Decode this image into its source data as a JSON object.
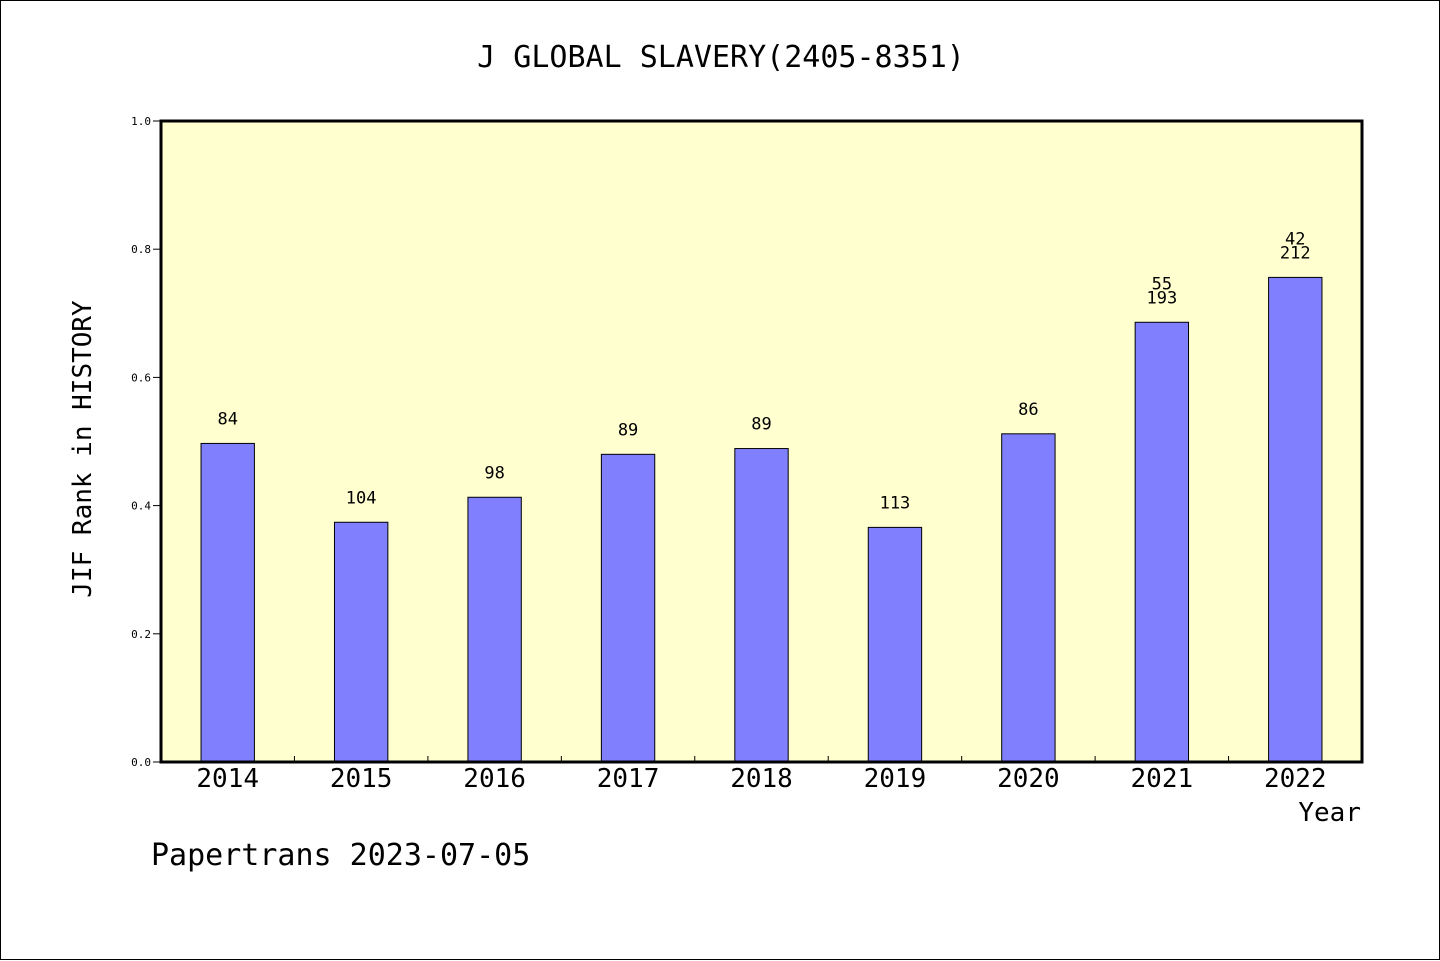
{
  "chart_data": {
    "type": "bar",
    "title": "J GLOBAL SLAVERY(2405-8351)",
    "xlabel": "Year",
    "ylabel": "JIF Rank in HISTORY",
    "ylim": [
      0,
      1.0
    ],
    "yticks": [
      "0.0",
      "0.2",
      "0.4",
      "0.6",
      "0.8",
      "1.0"
    ],
    "categories": [
      "2014",
      "2015",
      "2016",
      "2017",
      "2018",
      "2019",
      "2020",
      "2021",
      "2022"
    ],
    "values": [
      0.497,
      0.374,
      0.413,
      0.48,
      0.489,
      0.366,
      0.512,
      0.686,
      0.756
    ],
    "labels_top": [
      "",
      "",
      "",
      "",
      "",
      "",
      "",
      "55",
      "42"
    ],
    "labels_bottom": [
      "84",
      "104",
      "98",
      "89",
      "89",
      "113",
      "86",
      "193",
      "212"
    ],
    "grid": false,
    "colors": {
      "bar": "#8080ff",
      "plot_background": "#ffffd0",
      "axis": "#000000"
    }
  },
  "footer": {
    "credit": "Papertrans 2023-07-05"
  }
}
